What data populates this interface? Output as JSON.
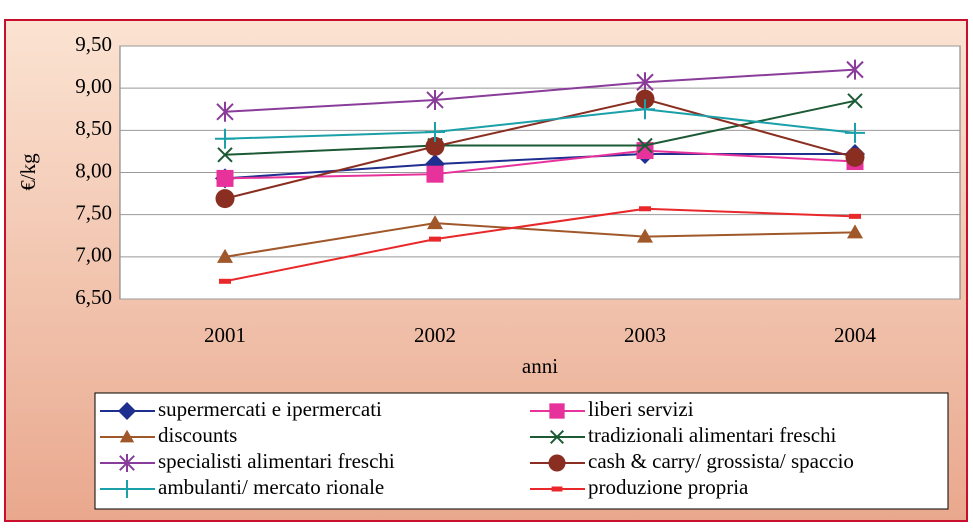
{
  "chart_data": {
    "type": "line",
    "x_label": "anni",
    "y_label": "€/kg",
    "categories": [
      "2001",
      "2002",
      "2003",
      "2004"
    ],
    "ylim": [
      6.5,
      9.5
    ],
    "yticks": [
      {
        "value": 6.5,
        "label": "6,50"
      },
      {
        "value": 7,
        "label": "7,00"
      },
      {
        "value": 7.5,
        "label": "7,50"
      },
      {
        "value": 8,
        "label": "8,00"
      },
      {
        "value": 8.5,
        "label": "8,50"
      },
      {
        "value": 9,
        "label": "9,00"
      },
      {
        "value": 9.5,
        "label": "9,50"
      }
    ],
    "grid": true,
    "series": [
      {
        "name": "supermercati e ipermercati",
        "color": "#1f2f8f",
        "marker": "diamond",
        "values": [
          7.93,
          8.1,
          8.22,
          8.22
        ]
      },
      {
        "name": "liberi servizi",
        "color": "#e8329b",
        "marker": "square",
        "values": [
          7.93,
          7.98,
          8.26,
          8.13
        ]
      },
      {
        "name": "discounts",
        "color": "#a0582a",
        "marker": "triangle",
        "values": [
          7.0,
          7.4,
          7.24,
          7.29
        ]
      },
      {
        "name": "tradizionali alimentari freschi",
        "color": "#1c5a36",
        "marker": "x",
        "values": [
          8.21,
          8.32,
          8.32,
          8.85
        ]
      },
      {
        "name": "specialisti alimentari freschi",
        "color": "#8a3c9a",
        "marker": "star",
        "values": [
          8.72,
          8.86,
          9.07,
          9.22
        ]
      },
      {
        "name": "cash & carry/ grossista/ spaccio",
        "color": "#8a2e22",
        "marker": "circle",
        "values": [
          7.69,
          8.31,
          8.87,
          8.18
        ]
      },
      {
        "name": "ambulanti/ mercato rionale",
        "color": "#1aa0a8",
        "marker": "plus",
        "values": [
          8.4,
          8.48,
          8.75,
          8.47
        ]
      },
      {
        "name": "produzione propria",
        "color": "#e8282a",
        "marker": "dash",
        "values": [
          6.71,
          7.21,
          7.57,
          7.48
        ]
      }
    ]
  }
}
